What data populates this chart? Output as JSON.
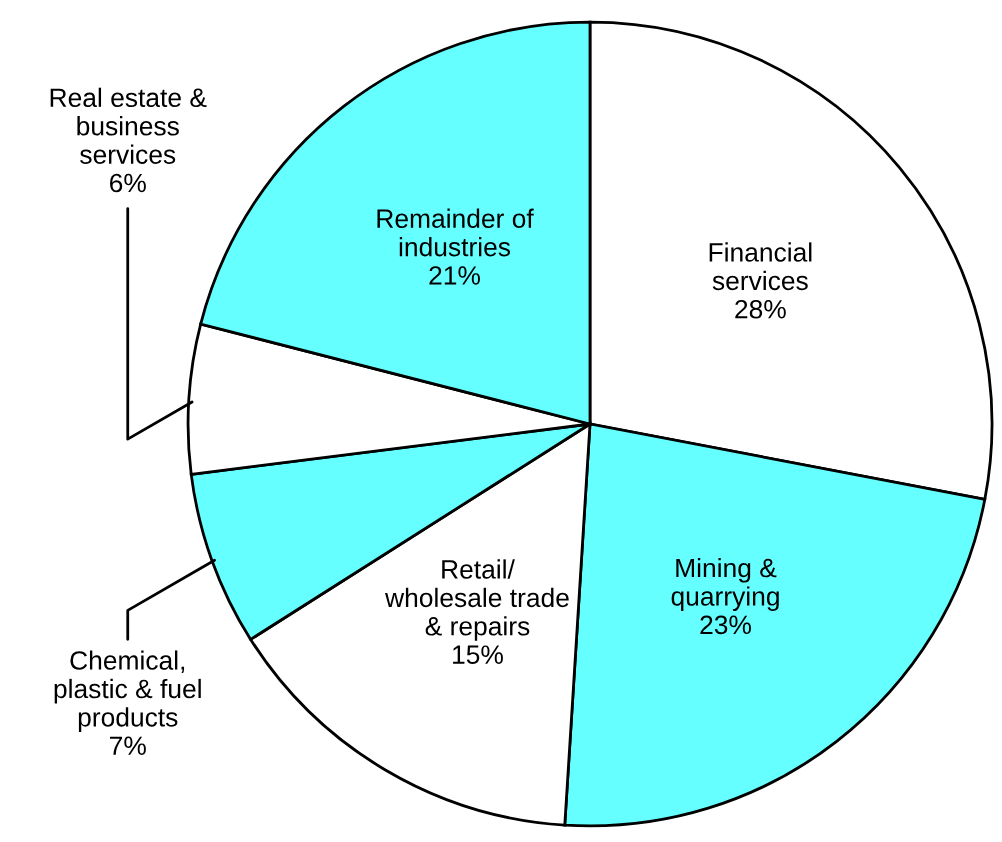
{
  "chart_data": {
    "type": "pie",
    "categories": [
      "Financial\nservices",
      "Mining &\nquarrying",
      "Retail/\nwholesale trade\n& repairs",
      "Chemical,\nplastic & fuel\nproducts",
      "Real estate &\nbusiness\nservices",
      "Remainder of\nindustries"
    ],
    "values": [
      28,
      23,
      15,
      7,
      6,
      21
    ],
    "colors": [
      "#ffffff",
      "#66ffff",
      "#ffffff",
      "#66ffff",
      "#ffffff",
      "#66ffff"
    ],
    "value_labels": [
      "28%",
      "23%",
      "15%",
      "7%",
      "6%",
      "21%"
    ],
    "legend": false
  }
}
